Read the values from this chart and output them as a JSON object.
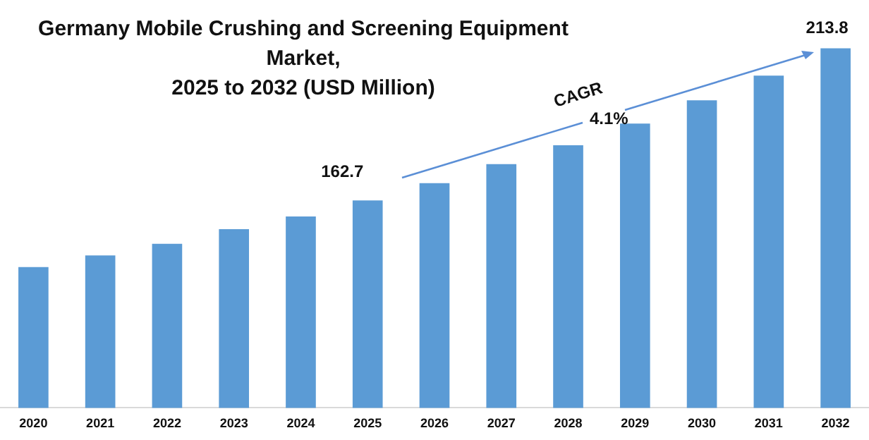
{
  "chart_data": {
    "type": "bar",
    "title": "Germany Mobile Crushing and Screening Equipment Market,\n2025 to 2032 (USD Million)",
    "categories": [
      "2020",
      "2021",
      "2022",
      "2023",
      "2024",
      "2025",
      "2026",
      "2027",
      "2028",
      "2029",
      "2030",
      "2031",
      "2032"
    ],
    "values": [
      140.3,
      144.2,
      148.1,
      153.0,
      157.3,
      162.7,
      168.5,
      174.9,
      181.2,
      188.5,
      196.3,
      204.6,
      213.8
    ],
    "value_labels": [
      null,
      null,
      null,
      null,
      null,
      "162.7",
      null,
      null,
      null,
      null,
      null,
      null,
      "213.8"
    ],
    "color": "#5b9bd5",
    "ylim": [
      93,
      230
    ],
    "tick_labels": "x",
    "grid": false,
    "legend": false,
    "annotations": [
      "CAGR",
      "4.1%"
    ]
  }
}
